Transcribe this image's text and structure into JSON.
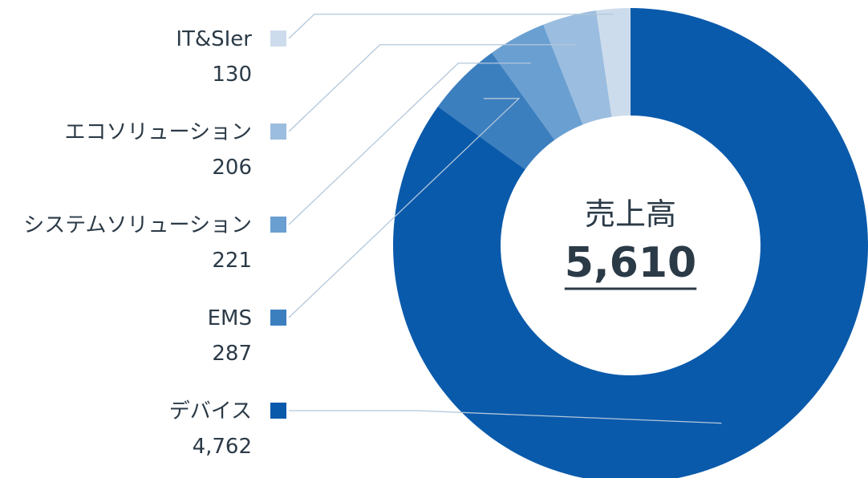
{
  "chart_data": {
    "type": "pie",
    "style": "donut",
    "center_label": "売上高",
    "center_value": "5,610",
    "total": 5610,
    "legend_placement": "left",
    "slices": [
      {
        "label": "IT&SIer",
        "value_label": "130",
        "value": 130,
        "color": "#cddcec"
      },
      {
        "label": "エコソリューション",
        "value_label": "206",
        "value": 206,
        "color": "#9bbddf"
      },
      {
        "label": "システムソリューション",
        "value_label": "221",
        "value": 221,
        "color": "#6a9fd1"
      },
      {
        "label": "EMS",
        "value_label": "287",
        "value": 287,
        "color": "#3c7fbf"
      },
      {
        "label": "デバイス",
        "value_label": "4,762",
        "value": 4762,
        "color": "#0a5aab"
      }
    ]
  }
}
